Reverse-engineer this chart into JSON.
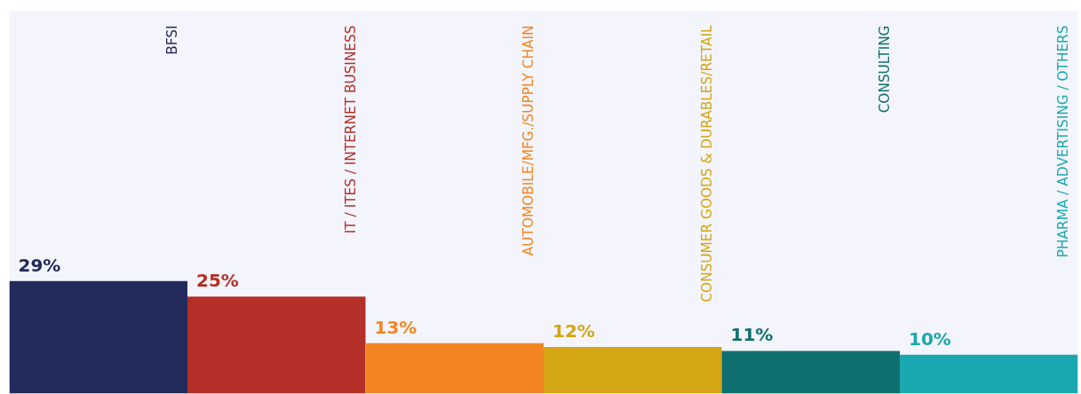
{
  "chart_data": {
    "type": "bar",
    "categories": [
      "BFSI",
      "IT / ITES / INTERNET BUSINESS",
      "AUTOMOBILE/MFG./SUPPLY CHAIN",
      "CONSUMER GOODS & DURABLES/RETAIL",
      "CONSULTING",
      "PHARMA / ADVERTISING / OTHERS"
    ],
    "values": [
      29,
      25,
      13,
      12,
      11,
      10
    ],
    "value_labels": [
      "29%",
      "25%",
      "13%",
      "12%",
      "11%",
      "10%"
    ],
    "colors": [
      "#232a5c",
      "#b32f27",
      "#f28522",
      "#d4a514",
      "#0e6f6e",
      "#1aa8b0"
    ],
    "grid": false
  }
}
